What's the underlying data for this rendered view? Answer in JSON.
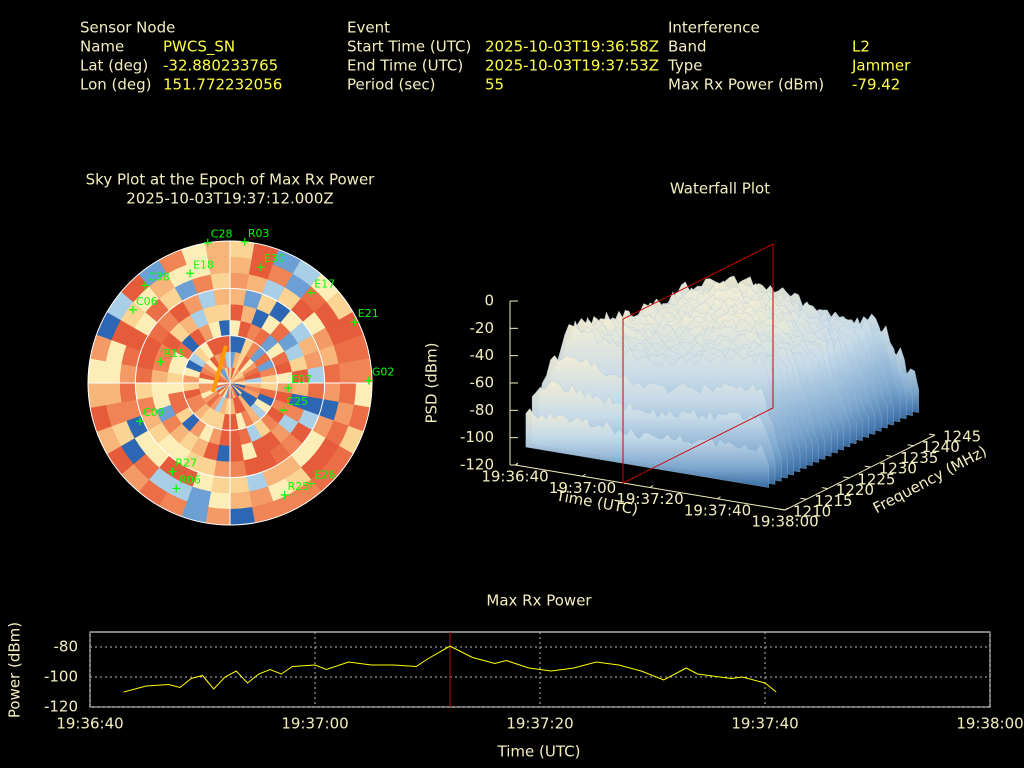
{
  "header": {
    "sensor_node": {
      "title": "Sensor Node",
      "rows": [
        [
          "Name",
          "PWCS_SN"
        ],
        [
          "Lat (deg)",
          "-32.880233765"
        ],
        [
          "Lon (deg)",
          "151.772232056"
        ]
      ]
    },
    "event": {
      "title": "Event",
      "rows": [
        [
          "Start Time (UTC)",
          "2025-10-03T19:36:58Z"
        ],
        [
          "End Time (UTC)",
          "2025-10-03T19:37:53Z"
        ],
        [
          "Period (sec)",
          "55"
        ]
      ]
    },
    "interference": {
      "title": "Interference",
      "rows": [
        [
          "Band",
          "L2"
        ],
        [
          "Type",
          "Jammer"
        ],
        [
          "Max Rx Power (dBm)",
          "-79.42"
        ]
      ]
    }
  },
  "chart_data": [
    {
      "type": "polar",
      "title": "Sky Plot at the Epoch of Max Rx Power",
      "subtitle": "2025-10-03T19:37:12.000Z",
      "color": "#00ff00",
      "satellites": [
        {
          "name": "C28",
          "az": 351,
          "el": 0
        },
        {
          "name": "R03",
          "az": 6,
          "el": 0
        },
        {
          "name": "E18",
          "az": 340,
          "el": 16
        },
        {
          "name": "E17",
          "az": 42,
          "el": 13
        },
        {
          "name": "C38",
          "az": 319,
          "el": 8
        },
        {
          "name": "E30",
          "az": 15,
          "el": 14
        },
        {
          "name": "E21",
          "az": 64,
          "el": 2
        },
        {
          "name": "G02",
          "az": 89,
          "el": 2
        },
        {
          "name": "C09",
          "az": 247,
          "el": 28
        },
        {
          "name": "C06",
          "az": 307,
          "el": 13
        },
        {
          "name": "R15",
          "az": 287,
          "el": 44
        },
        {
          "name": "R06",
          "az": 207,
          "el": 15
        },
        {
          "name": "R27",
          "az": 213,
          "el": 23
        },
        {
          "name": "R25",
          "az": 154,
          "el": 11
        },
        {
          "name": "E26",
          "az": 141,
          "el": 8
        },
        {
          "name": "C25",
          "az": 117,
          "el": 52
        },
        {
          "name": "E07",
          "az": 95,
          "el": 53
        }
      ]
    },
    {
      "type": "surface",
      "title": "Waterfall Plot",
      "xlabel": "Time (UTC)",
      "ylabel": "Frequency (MHz)",
      "zlabel": "PSD (dBm)",
      "xlim": [
        "19:36:40",
        "19:38:00"
      ],
      "xticks": [
        "19:36:40",
        "19:37:00",
        "19:37:20",
        "19:37:40",
        "19:38:00"
      ],
      "ylim": [
        1210,
        1245
      ],
      "yticks": [
        1210,
        1215,
        1220,
        1225,
        1230,
        1235,
        1240,
        1245
      ],
      "zlim": [
        -120,
        0
      ],
      "zticks": [
        0,
        -20,
        -40,
        -60,
        -80,
        -100,
        -120
      ],
      "marker_x": "19:37:12",
      "marker_color": "#cc0000"
    },
    {
      "type": "line",
      "title": "Max Rx Power",
      "xlabel": "Time (UTC)",
      "ylabel": "Power (dBm)",
      "x": [
        "19:36:43",
        "19:36:45",
        "19:36:47",
        "19:36:48",
        "19:36:49",
        "19:36:50",
        "19:36:51",
        "19:36:52",
        "19:36:53",
        "19:36:54",
        "19:36:55",
        "19:36:56",
        "19:36:57",
        "19:36:58",
        "19:37:00",
        "19:37:01",
        "19:37:03",
        "19:37:05",
        "19:37:07",
        "19:37:09",
        "19:37:10",
        "19:37:12",
        "19:37:14",
        "19:37:16",
        "19:37:17",
        "19:37:19",
        "19:37:21",
        "19:37:23",
        "19:37:25",
        "19:37:27",
        "19:37:29",
        "19:37:31",
        "19:37:33",
        "19:37:34",
        "19:37:35",
        "19:37:37",
        "19:37:38",
        "19:37:40",
        "19:37:41"
      ],
      "values": [
        -110,
        -106,
        -105,
        -107,
        -101,
        -99,
        -108,
        -100,
        -96,
        -104,
        -98,
        -95,
        -98,
        -93,
        -92,
        -95,
        -90,
        -92,
        -92,
        -93,
        -88,
        -79.42,
        -87,
        -91,
        -89,
        -94,
        -96,
        -94,
        -90,
        -92,
        -96,
        -102,
        -94,
        -98,
        -99,
        -101,
        -100,
        -104,
        -110
      ],
      "color": "#ffff00",
      "xlim": [
        "19:36:40",
        "19:38:00"
      ],
      "xticks": [
        "19:36:40",
        "19:37:00",
        "19:37:20",
        "19:37:40",
        "19:38:00"
      ],
      "ylim": [
        -120,
        -70
      ],
      "yticks": [
        -80,
        -100,
        -120
      ],
      "grid": true,
      "marker_x": "19:37:12",
      "marker_color": "#cc0000"
    }
  ]
}
